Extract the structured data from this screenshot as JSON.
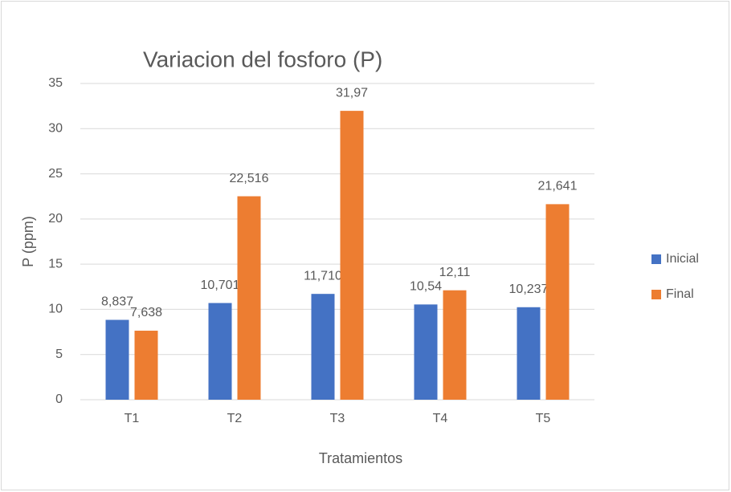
{
  "chart_data": {
    "type": "bar",
    "title": "Variacion del fosforo (P)",
    "x_label": "Tratamientos",
    "y_label": "P (ppm)",
    "categories": [
      "T1",
      "T2",
      "T3",
      "T4",
      "T5"
    ],
    "series": [
      {
        "name": "Inicial",
        "color": "#4472c4",
        "values": [
          8.837,
          10.701,
          11.71,
          10.54,
          10.237
        ],
        "value_labels": [
          "8,837",
          "10,701",
          "11,710",
          "10,54",
          "10,237"
        ]
      },
      {
        "name": "Final",
        "color": "#ed7d31",
        "values": [
          7.638,
          22.516,
          31.97,
          12.11,
          21.641
        ],
        "value_labels": [
          "7,638",
          "22,516",
          "31,97",
          "12,11",
          "21,641"
        ]
      }
    ],
    "ylim": [
      0,
      35
    ],
    "yticks": [
      0,
      5,
      10,
      15,
      20,
      25,
      30,
      35
    ],
    "grid": true,
    "legend": "right"
  }
}
